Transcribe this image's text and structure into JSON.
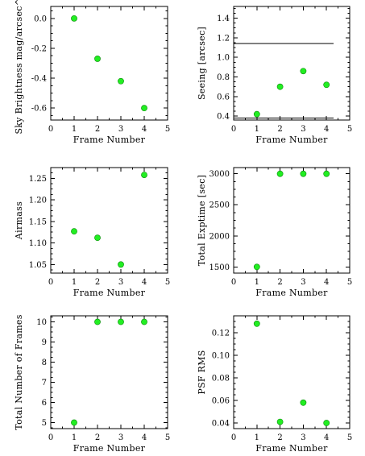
{
  "chart_data": [
    {
      "type": "scatter",
      "xlabel": "Frame Number",
      "ylabel": "Sky Brightness mag/arcsec^2",
      "xlim": [
        0,
        5
      ],
      "ylim": [
        -0.68,
        0.08
      ],
      "xticks": [
        0,
        1,
        2,
        3,
        4,
        5
      ],
      "yticks": [
        0.0,
        -0.2,
        -0.4,
        -0.6
      ],
      "ytick_labels": [
        "0.0",
        "-0.2",
        "-0.4",
        "-0.6"
      ],
      "x": [
        1,
        2,
        3,
        4
      ],
      "y": [
        0.0,
        -0.27,
        -0.42,
        -0.6
      ],
      "point_color": "#22ee22"
    },
    {
      "type": "scatter",
      "xlabel": "Frame Number",
      "ylabel": "Seeing [arcsec]",
      "xlim": [
        0,
        5
      ],
      "ylim": [
        0.36,
        1.52
      ],
      "xticks": [
        0,
        1,
        2,
        3,
        4,
        5
      ],
      "yticks": [
        0.4,
        0.6,
        0.8,
        1.0,
        1.2,
        1.4
      ],
      "ytick_labels": [
        "0.4",
        "0.6",
        "0.8",
        "1.0",
        "1.2",
        "1.4"
      ],
      "x": [
        1,
        2,
        3,
        4
      ],
      "y": [
        0.42,
        0.7,
        0.86,
        0.72
      ],
      "reference_lines": [
        {
          "y": 1.14,
          "x_range": [
            0,
            4.3
          ]
        },
        {
          "y": 0.38,
          "x_range": [
            0,
            4.3
          ]
        }
      ],
      "point_color": "#22ee22"
    },
    {
      "type": "scatter",
      "xlabel": "Frame Number",
      "ylabel": "Airmass",
      "xlim": [
        0,
        5
      ],
      "ylim": [
        1.03,
        1.275
      ],
      "xticks": [
        0,
        1,
        2,
        3,
        4,
        5
      ],
      "yticks": [
        1.05,
        1.1,
        1.15,
        1.2,
        1.25
      ],
      "ytick_labels": [
        "1.05",
        "1.10",
        "1.15",
        "1.20",
        "1.25"
      ],
      "x": [
        1,
        2,
        3,
        4
      ],
      "y": [
        1.127,
        1.112,
        1.05,
        1.258
      ],
      "point_color": "#22ee22"
    },
    {
      "type": "scatter",
      "xlabel": "Frame Number",
      "ylabel": "Total Exptime [sec]",
      "xlim": [
        0,
        5
      ],
      "ylim": [
        1400,
        3100
      ],
      "xticks": [
        0,
        1,
        2,
        3,
        4,
        5
      ],
      "yticks": [
        1500,
        2000,
        2500,
        3000
      ],
      "ytick_labels": [
        "1500",
        "2000",
        "2500",
        "3000"
      ],
      "x": [
        1,
        2,
        3,
        4
      ],
      "y": [
        1500,
        3000,
        3000,
        3000
      ],
      "point_color": "#22ee22"
    },
    {
      "type": "scatter",
      "xlabel": "Frame Number",
      "ylabel": "Total Number of Frames",
      "xlim": [
        0,
        5
      ],
      "ylim": [
        4.7,
        10.3
      ],
      "xticks": [
        0,
        1,
        2,
        3,
        4,
        5
      ],
      "yticks": [
        5,
        6,
        7,
        8,
        9,
        10
      ],
      "ytick_labels": [
        "5",
        "6",
        "7",
        "8",
        "9",
        "10"
      ],
      "x": [
        1,
        2,
        3,
        4
      ],
      "y": [
        5,
        10,
        10,
        10
      ],
      "point_color": "#22ee22"
    },
    {
      "type": "scatter",
      "xlabel": "Frame Number",
      "ylabel": "PSF RMS",
      "xlim": [
        0,
        5
      ],
      "ylim": [
        0.035,
        0.135
      ],
      "xticks": [
        0,
        1,
        2,
        3,
        4,
        5
      ],
      "yticks": [
        0.04,
        0.06,
        0.08,
        0.1,
        0.12
      ],
      "ytick_labels": [
        "0.04",
        "0.06",
        "0.08",
        "0.10",
        "0.12"
      ],
      "x": [
        1,
        2,
        3,
        4
      ],
      "y": [
        0.128,
        0.041,
        0.058,
        0.04
      ],
      "point_color": "#22ee22"
    }
  ]
}
